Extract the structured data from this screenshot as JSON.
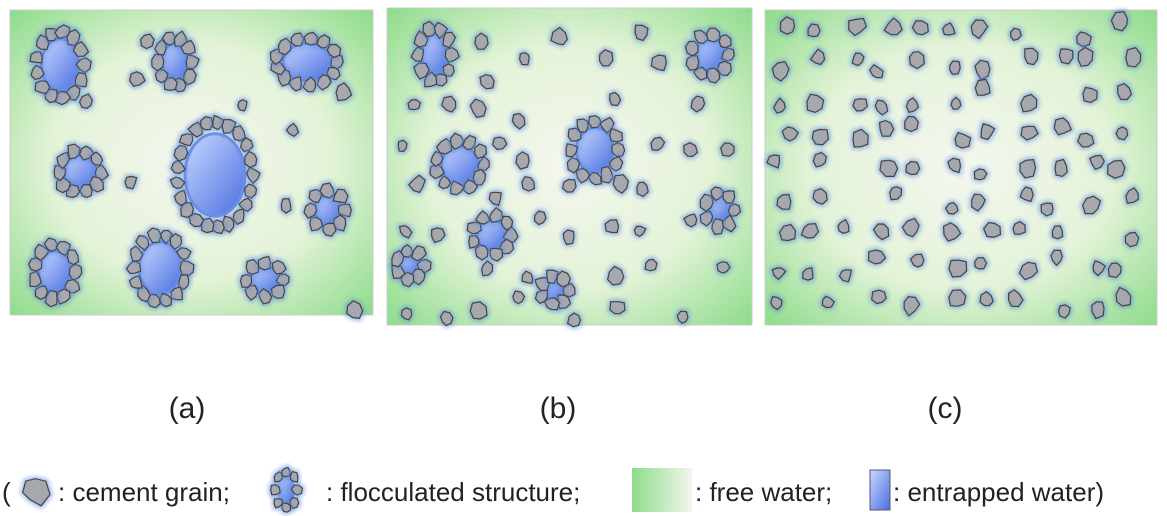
{
  "panels": [
    {
      "label": "(a)"
    },
    {
      "label": "(b)"
    },
    {
      "label": "(c)"
    }
  ],
  "legend": {
    "open": "(",
    "cement_grain": ": cement grain;",
    "flocculated_structure": ": flocculated structure;",
    "free_water": ": free water;",
    "entrapped_water": ": entrapped water)"
  }
}
